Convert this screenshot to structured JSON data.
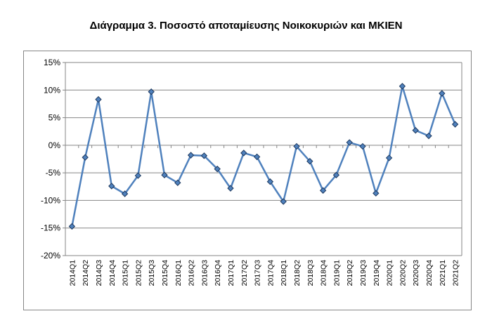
{
  "chart_data": {
    "type": "line",
    "title": "Διάγραμμα 3. Ποσοστό αποταμίευσης Νοικοκυριών και ΜΚΙΕΝ",
    "xlabel": "",
    "ylabel": "",
    "ylim": [
      -20,
      15
    ],
    "y_ticks": [
      "15%",
      "10%",
      "5%",
      "0%",
      "-5%",
      "-10%",
      "-15%",
      "-20%"
    ],
    "y_tick_values": [
      15,
      10,
      5,
      0,
      -5,
      -10,
      -15,
      -20
    ],
    "grid": "horizontal",
    "legend": "none",
    "categories": [
      "2014Q1",
      "2014Q2",
      "2014Q3",
      "2014Q4",
      "2015Q1",
      "2015Q2",
      "2015Q3",
      "2015Q4",
      "2016Q1",
      "2016Q2",
      "2016Q3",
      "2016Q4",
      "2017Q1",
      "2017Q2",
      "2017Q3",
      "2017Q4",
      "2018Q1",
      "2018Q2",
      "2018Q3",
      "2018Q4",
      "2019Q1",
      "2019Q2",
      "2019Q3",
      "2019Q4",
      "2020Q1",
      "2020Q2",
      "2020Q3",
      "2020Q4",
      "2021Q1",
      "2021Q2"
    ],
    "series": [
      {
        "values": [
          -14.7,
          -2.2,
          8.3,
          -7.4,
          -8.8,
          -5.5,
          9.7,
          -5.4,
          -6.8,
          -1.8,
          -1.9,
          -4.3,
          -7.8,
          -1.4,
          -2.1,
          -6.6,
          -10.2,
          -0.2,
          -2.9,
          -8.2,
          -5.4,
          0.5,
          -0.2,
          -8.7,
          -2.3,
          10.7,
          2.7,
          1.7,
          9.4,
          3.8
        ]
      }
    ],
    "colors": {
      "line": "#4F81BD",
      "marker_fill": "#4F81BD",
      "marker_stroke": "#1F3A5F",
      "grid": "#868686",
      "axis": "#868686"
    }
  }
}
